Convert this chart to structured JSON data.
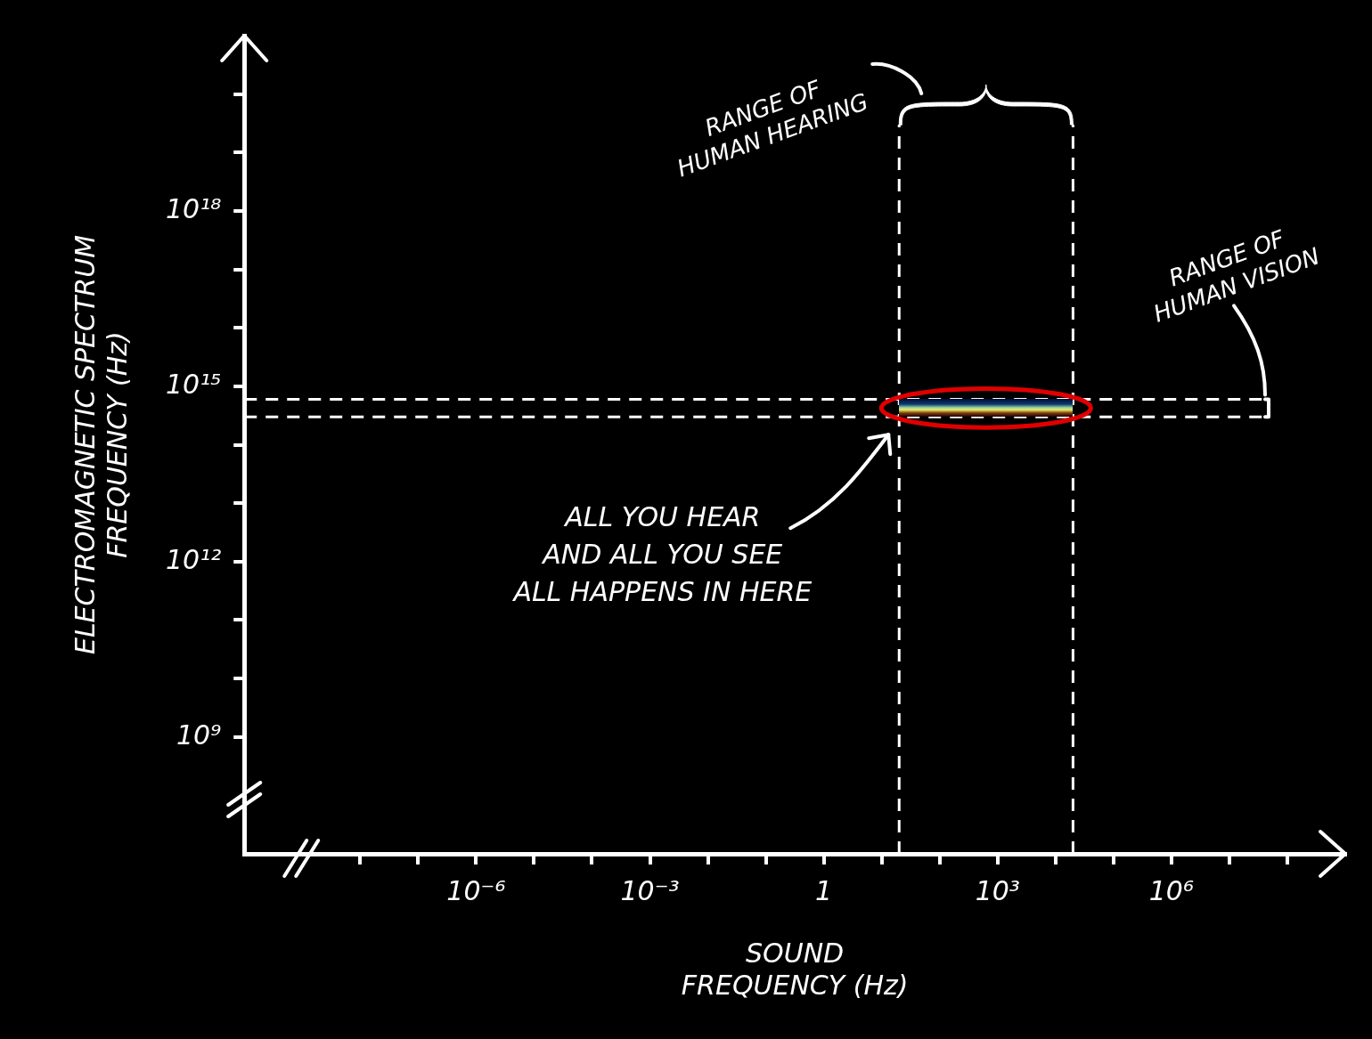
{
  "chart_data": {
    "type": "scatter",
    "xlabel": "SOUND\nFREQUENCY (Hz)",
    "ylabel": "ELECTROMAGNETIC SPECTRUM\nFREQUENCY (Hz)",
    "log": "xy",
    "legend": false,
    "xlim": [
      1e-10,
      1000000000.0
    ],
    "xticks": [
      {
        "value": 1e-08,
        "label": null
      },
      {
        "value": 1e-07,
        "label": null
      },
      {
        "value": 1e-06,
        "label": "10⁻⁶"
      },
      {
        "value": 1e-05,
        "label": null
      },
      {
        "value": 0.0001,
        "label": null
      },
      {
        "value": 0.001,
        "label": "10⁻³"
      },
      {
        "value": 0.01,
        "label": null
      },
      {
        "value": 0.1,
        "label": null
      },
      {
        "value": 1,
        "label": "1"
      },
      {
        "value": 10,
        "label": null
      },
      {
        "value": 100,
        "label": null
      },
      {
        "value": 1000,
        "label": "10³"
      },
      {
        "value": 10000.0,
        "label": null
      },
      {
        "value": 100000.0,
        "label": null
      },
      {
        "value": 1000000.0,
        "label": "10⁶"
      },
      {
        "value": 10000000.0,
        "label": null
      },
      {
        "value": 100000000.0,
        "label": null
      }
    ],
    "ylim": [
      10000000.0,
      1e+21
    ],
    "yticks": [
      {
        "value": 1000000000.0,
        "label": "10⁹"
      },
      {
        "value": 10000000000.0,
        "label": null
      },
      {
        "value": 100000000000.0,
        "label": null
      },
      {
        "value": 1000000000000.0,
        "label": "10¹²"
      },
      {
        "value": 10000000000000.0,
        "label": null
      },
      {
        "value": 100000000000000.0,
        "label": null
      },
      {
        "value": 1000000000000000.0,
        "label": "10¹⁵"
      },
      {
        "value": 1e+16,
        "label": null
      },
      {
        "value": 1e+17,
        "label": null
      },
      {
        "value": 1e+18,
        "label": "10¹⁸"
      },
      {
        "value": 1e+19,
        "label": null
      },
      {
        "value": 1e+20,
        "label": null
      }
    ],
    "ref_lines": [
      {
        "axis": "x",
        "value": 20,
        "label": "RANGE OF\nHUMAN HEARING",
        "color": "#ffffff",
        "line_style": "dashed"
      },
      {
        "axis": "x",
        "value": 20000,
        "color": "#ffffff",
        "line_style": "dashed"
      },
      {
        "axis": "y",
        "value": 600000000000000.0,
        "label": "RANGE OF\nHUMAN VISION",
        "color": "#ffffff",
        "line_style": "dashed"
      },
      {
        "axis": "y",
        "value": 300000000000000.0,
        "color": "#ffffff",
        "line_style": "dashed"
      }
    ],
    "annotations": [
      "ALL YOU HEAR\nAND ALL YOU SEE\nALL HAPPENS IN HERE"
    ]
  }
}
